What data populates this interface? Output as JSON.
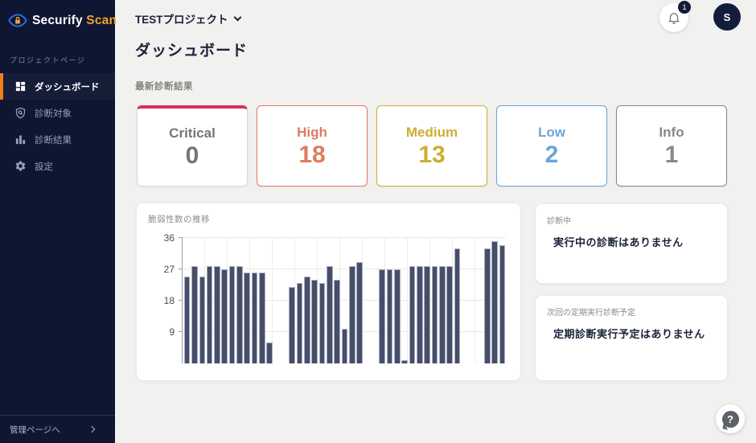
{
  "sidebar": {
    "logo": {
      "brand_primary": "Securify",
      "brand_accent": "Scan",
      "accent_color": "#f5a02d"
    },
    "section_label": "プロジェクトページ",
    "items": [
      {
        "label": "ダッシュボード",
        "icon": "dashboard-grid-icon",
        "active": true
      },
      {
        "label": "診断対象",
        "icon": "shield-search-icon",
        "active": false
      },
      {
        "label": "診断結果",
        "icon": "bar-chart-icon",
        "active": false
      },
      {
        "label": "設定",
        "icon": "gear-icon",
        "active": false
      }
    ],
    "active_accent_color": "#ee7d1a",
    "footer_link": "管理ページへ"
  },
  "header": {
    "project_selector": "TESTプロジェクト",
    "notification_count": "1",
    "avatar_initial": "S"
  },
  "page": {
    "title": "ダッシュボード",
    "section_title": "最新診断結果"
  },
  "severity_cards": [
    {
      "label": "Critical",
      "value": "0",
      "accent_color": "#dc2e56",
      "text_color": "#76767a",
      "border": "top-accent"
    },
    {
      "label": "High",
      "value": "18",
      "accent_color": "#df7b5e",
      "text_color": "#df7b5e",
      "border": "full"
    },
    {
      "label": "Medium",
      "value": "13",
      "accent_color": "#ccae31",
      "text_color": "#ccae31",
      "border": "full"
    },
    {
      "label": "Low",
      "value": "2",
      "accent_color": "#6aa5d8",
      "text_color": "#6aa5d8",
      "border": "full"
    },
    {
      "label": "Info",
      "value": "1",
      "accent_color": "#88888f",
      "text_color": "#88888f",
      "border": "full"
    }
  ],
  "chart_data": {
    "type": "bar",
    "title": "脆弱性数の推移",
    "xlabel": "",
    "ylabel": "",
    "ylim": [
      0,
      36
    ],
    "yticks": [
      9,
      18,
      27,
      36
    ],
    "grid": true,
    "x_tick_labels_visible": false,
    "bar_color": "#464e6a",
    "values": [
      25,
      28,
      25,
      28,
      28,
      27,
      28,
      28,
      26,
      26,
      26,
      6,
      null,
      null,
      22,
      23,
      25,
      24,
      23,
      28,
      24,
      10,
      28,
      29,
      null,
      null,
      27,
      27,
      27,
      1,
      28,
      28,
      28,
      28,
      28,
      28,
      33,
      null,
      null,
      null,
      33,
      35,
      34
    ]
  },
  "panels": [
    {
      "label": "診断中",
      "message": "実行中の診断はありません"
    },
    {
      "label": "次回の定期実行診断予定",
      "message": "定期診断実行予定はありません"
    }
  ]
}
